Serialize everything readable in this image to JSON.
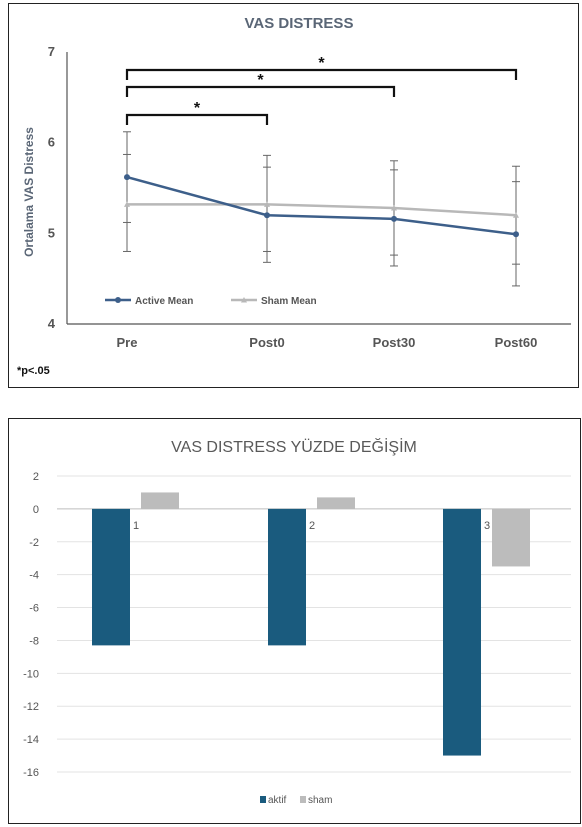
{
  "chart_data": [
    {
      "type": "line",
      "title": "VAS DISTRESS",
      "ylabel": "Ortalama VAS Distress",
      "xlabel": "",
      "categories": [
        "Pre",
        "Post0",
        "Post30",
        "Post60"
      ],
      "ylim": [
        4,
        7
      ],
      "yticks": [
        "4",
        "5",
        "6",
        "7"
      ],
      "grid": false,
      "legend_position": "bottom-left",
      "series": [
        {
          "name": "Active Mean",
          "color": "#3d5f8a",
          "values": [
            5.62,
            5.2,
            5.16,
            4.99
          ],
          "err_high": [
            6.12,
            5.86,
            5.8,
            5.74
          ],
          "err_low": [
            4.8,
            4.68,
            4.64,
            4.42
          ]
        },
        {
          "name": "Sham Mean",
          "color": "#b8b8b8",
          "values": [
            5.32,
            5.32,
            5.28,
            5.2
          ],
          "err_high": [
            5.87,
            5.73,
            5.7,
            5.57
          ],
          "err_low": [
            5.12,
            4.8,
            4.76,
            4.66
          ]
        }
      ],
      "brackets": [
        {
          "from": "Pre",
          "to": "Post0",
          "label": "*"
        },
        {
          "from": "Pre",
          "to": "Post30",
          "label": "*"
        },
        {
          "from": "Pre",
          "to": "Post60",
          "label": "*"
        }
      ],
      "note": "*p<.05"
    },
    {
      "type": "bar",
      "title": "VAS DISTRESS YÜZDE DEĞİŞİM",
      "xlabel": "",
      "ylabel": "",
      "categories": [
        "1",
        "2",
        "3"
      ],
      "ylim": [
        -16,
        2
      ],
      "yticks": [
        "2",
        "0",
        "-2",
        "-4",
        "-6",
        "-8",
        "-10",
        "-12",
        "-14",
        "-16"
      ],
      "grid": true,
      "legend_position": "bottom",
      "series": [
        {
          "name": "aktif",
          "color": "#1a5b7e",
          "values": [
            -8.3,
            -8.3,
            -15
          ]
        },
        {
          "name": "sham",
          "color": "#bcbcbc",
          "values": [
            1,
            0.7,
            -3.5
          ]
        }
      ]
    }
  ]
}
